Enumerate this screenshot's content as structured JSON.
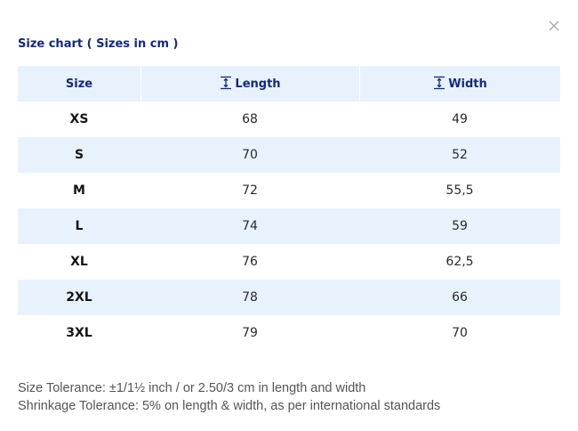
{
  "modal": {
    "title": "Size chart ( Sizes in cm )",
    "close_icon": "close-icon"
  },
  "table": {
    "headers": {
      "size": "Size",
      "length": "Length",
      "width": "Width",
      "length_icon": "vertical-measure-icon",
      "width_icon": "vertical-measure-icon"
    },
    "rows": [
      {
        "size": "XS",
        "length": "68",
        "width": "49"
      },
      {
        "size": "S",
        "length": "70",
        "width": "52"
      },
      {
        "size": "M",
        "length": "72",
        "width": "55,5"
      },
      {
        "size": "L",
        "length": "74",
        "width": "59"
      },
      {
        "size": "XL",
        "length": "76",
        "width": "62,5"
      },
      {
        "size": "2XL",
        "length": "78",
        "width": "66"
      },
      {
        "size": "3XL",
        "length": "79",
        "width": "70"
      }
    ]
  },
  "footer": {
    "size_tolerance": "Size Tolerance: ±1/1½ inch / or 2.50/3 cm in length and width",
    "shrinkage_tolerance": "Shrinkage Tolerance: 5% on length & width, as per international standards"
  },
  "colors": {
    "accent": "#16297a",
    "row_shade": "#e8f2fd"
  }
}
